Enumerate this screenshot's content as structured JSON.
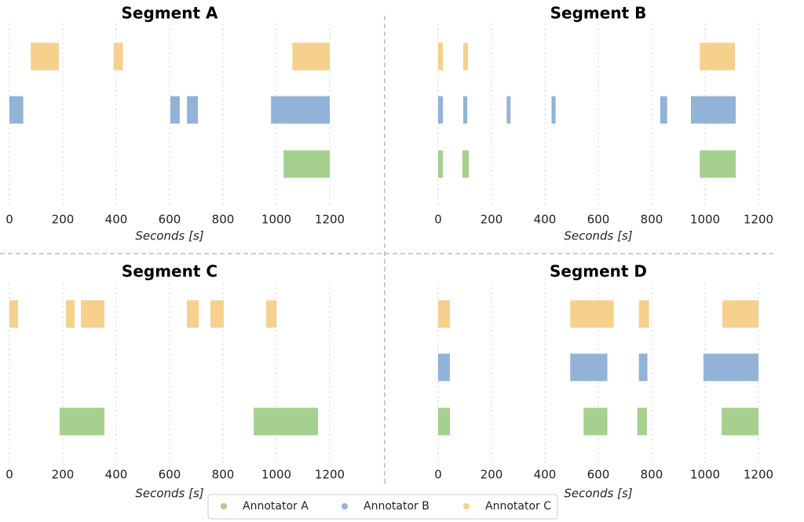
{
  "chart_data": {
    "type": "broken_barh",
    "xlabel": "Seconds [s]",
    "xlim": [
      0,
      1200
    ],
    "xticks": [
      0,
      200,
      400,
      600,
      800,
      1000,
      1200
    ],
    "grid": true,
    "legend": "bottom",
    "series": [
      {
        "name": "Annotator A",
        "color": "#a6d08e"
      },
      {
        "name": "Annotator B",
        "color": "#92b3d7"
      },
      {
        "name": "Annotator C",
        "color": "#f6d08d"
      }
    ],
    "panels": [
      {
        "title": "Segment A",
        "intervals": [
          [
            [
              1027,
              1200
            ]
          ],
          [
            [
              0,
              52
            ],
            [
              603,
              638
            ],
            [
              665,
              706
            ],
            [
              980,
              1200
            ]
          ],
          [
            [
              80,
              185
            ],
            [
              390,
              425
            ],
            [
              1060,
              1200
            ]
          ]
        ]
      },
      {
        "title": "Segment B",
        "intervals": [
          [
            [
              0,
              18
            ],
            [
              91,
              115
            ],
            [
              980,
              1115
            ]
          ],
          [
            [
              0,
              18
            ],
            [
              94,
              109
            ],
            [
              257,
              271
            ],
            [
              425,
              440
            ],
            [
              832,
              858
            ],
            [
              947,
              1115
            ]
          ],
          [
            [
              0,
              18
            ],
            [
              94,
              112
            ],
            [
              980,
              1112
            ]
          ]
        ]
      },
      {
        "title": "Segment C",
        "intervals": [
          [
            [
              188,
              356
            ],
            [
              915,
              1156
            ]
          ],
          [],
          [
            [
              0,
              32
            ],
            [
              212,
              244
            ],
            [
              268,
              356
            ],
            [
              665,
              709
            ],
            [
              753,
              803
            ],
            [
              962,
              1000
            ]
          ]
        ]
      },
      {
        "title": "Segment D",
        "intervals": [
          [
            [
              0,
              44
            ],
            [
              545,
              634
            ],
            [
              746,
              782
            ],
            [
              1062,
              1200
            ]
          ],
          [
            [
              0,
              44
            ],
            [
              495,
              634
            ],
            [
              752,
              784
            ],
            [
              994,
              1200
            ]
          ],
          [
            [
              0,
              44
            ],
            [
              495,
              658
            ],
            [
              752,
              790
            ],
            [
              1065,
              1200
            ]
          ]
        ]
      }
    ]
  }
}
